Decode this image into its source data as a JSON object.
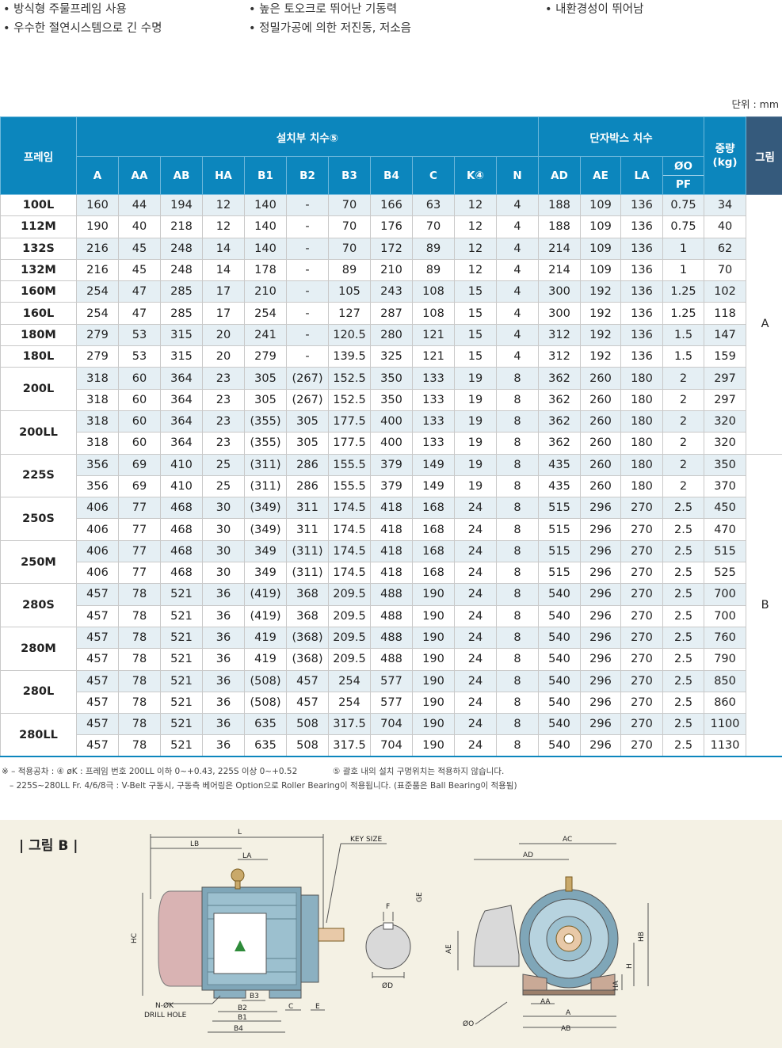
{
  "features": [
    "• 방식형 주물프레임 사용",
    "• 높은 토오크로 뛰어난 기동력",
    "• 내환경성이 뛰어남",
    "• 우수한 절연시스템으로 긴 수명",
    "• 정밀가공에 의한 저진동, 저소음"
  ],
  "unit_label": "단위 : mm",
  "table": {
    "header_frame": "프레임",
    "header_install": "설치부 치수⑤",
    "header_terminal": "단자박스 치수",
    "header_weight": "중량 (kg)",
    "header_figure": "그림",
    "install_cols": [
      "A",
      "AA",
      "AB",
      "HA",
      "B1",
      "B2",
      "B3",
      "B4",
      "C",
      "K④",
      "N"
    ],
    "terminal_cols": [
      "AD",
      "AE",
      "LA"
    ],
    "phi_o": "ØO",
    "pf": "PF",
    "groups": [
      {
        "frame": "100L",
        "rows": [
          [
            "160",
            "44",
            "194",
            "12",
            "140",
            "-",
            "70",
            "166",
            "63",
            "12",
            "4",
            "188",
            "109",
            "136",
            "0.75",
            "34"
          ]
        ]
      },
      {
        "frame": "112M",
        "rows": [
          [
            "190",
            "40",
            "218",
            "12",
            "140",
            "-",
            "70",
            "176",
            "70",
            "12",
            "4",
            "188",
            "109",
            "136",
            "0.75",
            "40"
          ]
        ]
      },
      {
        "frame": "132S",
        "rows": [
          [
            "216",
            "45",
            "248",
            "14",
            "140",
            "-",
            "70",
            "172",
            "89",
            "12",
            "4",
            "214",
            "109",
            "136",
            "1",
            "62"
          ]
        ]
      },
      {
        "frame": "132M",
        "rows": [
          [
            "216",
            "45",
            "248",
            "14",
            "178",
            "-",
            "89",
            "210",
            "89",
            "12",
            "4",
            "214",
            "109",
            "136",
            "1",
            "70"
          ]
        ]
      },
      {
        "frame": "160M",
        "rows": [
          [
            "254",
            "47",
            "285",
            "17",
            "210",
            "-",
            "105",
            "243",
            "108",
            "15",
            "4",
            "300",
            "192",
            "136",
            "1.25",
            "102"
          ]
        ]
      },
      {
        "frame": "160L",
        "rows": [
          [
            "254",
            "47",
            "285",
            "17",
            "254",
            "-",
            "127",
            "287",
            "108",
            "15",
            "4",
            "300",
            "192",
            "136",
            "1.25",
            "118"
          ]
        ]
      },
      {
        "frame": "180M",
        "rows": [
          [
            "279",
            "53",
            "315",
            "20",
            "241",
            "-",
            "120.5",
            "280",
            "121",
            "15",
            "4",
            "312",
            "192",
            "136",
            "1.5",
            "147"
          ]
        ]
      },
      {
        "frame": "180L",
        "rows": [
          [
            "279",
            "53",
            "315",
            "20",
            "279",
            "-",
            "139.5",
            "325",
            "121",
            "15",
            "4",
            "312",
            "192",
            "136",
            "1.5",
            "159"
          ]
        ]
      },
      {
        "frame": "200L",
        "rows": [
          [
            "318",
            "60",
            "364",
            "23",
            "305",
            "(267)",
            "152.5",
            "350",
            "133",
            "19",
            "8",
            "362",
            "260",
            "180",
            "2",
            "297"
          ],
          [
            "318",
            "60",
            "364",
            "23",
            "305",
            "(267)",
            "152.5",
            "350",
            "133",
            "19",
            "8",
            "362",
            "260",
            "180",
            "2",
            "297"
          ]
        ]
      },
      {
        "frame": "200LL",
        "rows": [
          [
            "318",
            "60",
            "364",
            "23",
            "(355)",
            "305",
            "177.5",
            "400",
            "133",
            "19",
            "8",
            "362",
            "260",
            "180",
            "2",
            "320"
          ],
          [
            "318",
            "60",
            "364",
            "23",
            "(355)",
            "305",
            "177.5",
            "400",
            "133",
            "19",
            "8",
            "362",
            "260",
            "180",
            "2",
            "320"
          ]
        ]
      },
      {
        "frame": "225S",
        "rows": [
          [
            "356",
            "69",
            "410",
            "25",
            "(311)",
            "286",
            "155.5",
            "379",
            "149",
            "19",
            "8",
            "435",
            "260",
            "180",
            "2",
            "350"
          ],
          [
            "356",
            "69",
            "410",
            "25",
            "(311)",
            "286",
            "155.5",
            "379",
            "149",
            "19",
            "8",
            "435",
            "260",
            "180",
            "2",
            "370"
          ]
        ]
      },
      {
        "frame": "250S",
        "rows": [
          [
            "406",
            "77",
            "468",
            "30",
            "(349)",
            "311",
            "174.5",
            "418",
            "168",
            "24",
            "8",
            "515",
            "296",
            "270",
            "2.5",
            "450"
          ],
          [
            "406",
            "77",
            "468",
            "30",
            "(349)",
            "311",
            "174.5",
            "418",
            "168",
            "24",
            "8",
            "515",
            "296",
            "270",
            "2.5",
            "470"
          ]
        ]
      },
      {
        "frame": "250M",
        "rows": [
          [
            "406",
            "77",
            "468",
            "30",
            "349",
            "(311)",
            "174.5",
            "418",
            "168",
            "24",
            "8",
            "515",
            "296",
            "270",
            "2.5",
            "515"
          ],
          [
            "406",
            "77",
            "468",
            "30",
            "349",
            "(311)",
            "174.5",
            "418",
            "168",
            "24",
            "8",
            "515",
            "296",
            "270",
            "2.5",
            "525"
          ]
        ]
      },
      {
        "frame": "280S",
        "rows": [
          [
            "457",
            "78",
            "521",
            "36",
            "(419)",
            "368",
            "209.5",
            "488",
            "190",
            "24",
            "8",
            "540",
            "296",
            "270",
            "2.5",
            "700"
          ],
          [
            "457",
            "78",
            "521",
            "36",
            "(419)",
            "368",
            "209.5",
            "488",
            "190",
            "24",
            "8",
            "540",
            "296",
            "270",
            "2.5",
            "700"
          ]
        ]
      },
      {
        "frame": "280M",
        "rows": [
          [
            "457",
            "78",
            "521",
            "36",
            "419",
            "(368)",
            "209.5",
            "488",
            "190",
            "24",
            "8",
            "540",
            "296",
            "270",
            "2.5",
            "760"
          ],
          [
            "457",
            "78",
            "521",
            "36",
            "419",
            "(368)",
            "209.5",
            "488",
            "190",
            "24",
            "8",
            "540",
            "296",
            "270",
            "2.5",
            "790"
          ]
        ]
      },
      {
        "frame": "280L",
        "rows": [
          [
            "457",
            "78",
            "521",
            "36",
            "(508)",
            "457",
            "254",
            "577",
            "190",
            "24",
            "8",
            "540",
            "296",
            "270",
            "2.5",
            "850"
          ],
          [
            "457",
            "78",
            "521",
            "36",
            "(508)",
            "457",
            "254",
            "577",
            "190",
            "24",
            "8",
            "540",
            "296",
            "270",
            "2.5",
            "860"
          ]
        ]
      },
      {
        "frame": "280LL",
        "rows": [
          [
            "457",
            "78",
            "521",
            "36",
            "635",
            "508",
            "317.5",
            "704",
            "190",
            "24",
            "8",
            "540",
            "296",
            "270",
            "2.5",
            "1100"
          ],
          [
            "457",
            "78",
            "521",
            "36",
            "635",
            "508",
            "317.5",
            "704",
            "190",
            "24",
            "8",
            "540",
            "296",
            "270",
            "2.5",
            "1130"
          ]
        ]
      }
    ],
    "figures": [
      {
        "label": "A",
        "from_group": 0,
        "group_count": 10
      },
      {
        "label": "B",
        "from_group": 10,
        "group_count": 7
      }
    ]
  },
  "notes": {
    "line1_a": "※ – 적용공차 : ④ øK : 프레임 번호 200LL 이하 0~+0.43, 225S 이상 0~+0.52",
    "line1_b": "⑤ 괄호 내의 설치 구멍위치는 적용하지 않습니다.",
    "line2": "– 225S~280LL Fr. 4/6/8극 : V-Belt 구동시, 구동측 베어링은 Option으로 Roller Bearing이 적용됩니다. (표준품은 Ball Bearing이 적용됨)"
  },
  "figure_b": {
    "title": "| 그림 B |",
    "labels": {
      "L": "L",
      "LB": "LB",
      "LA": "LA",
      "KEY_SIZE": "KEY SIZE",
      "HC": "HC",
      "B3": "B3",
      "B2": "B2",
      "B1": "B1",
      "B4": "B4",
      "C": "C",
      "E": "E",
      "NK": "N-ØK",
      "DRILL": "DRILL HOLE",
      "F": "F",
      "GE": "GE",
      "D": "ØD",
      "AC": "AC",
      "AD": "AD",
      "AE": "AE",
      "HB": "HB",
      "H": "H",
      "HA": "HA",
      "AA": "AA",
      "A": "A",
      "AB": "AB",
      "O": "ØO"
    }
  }
}
